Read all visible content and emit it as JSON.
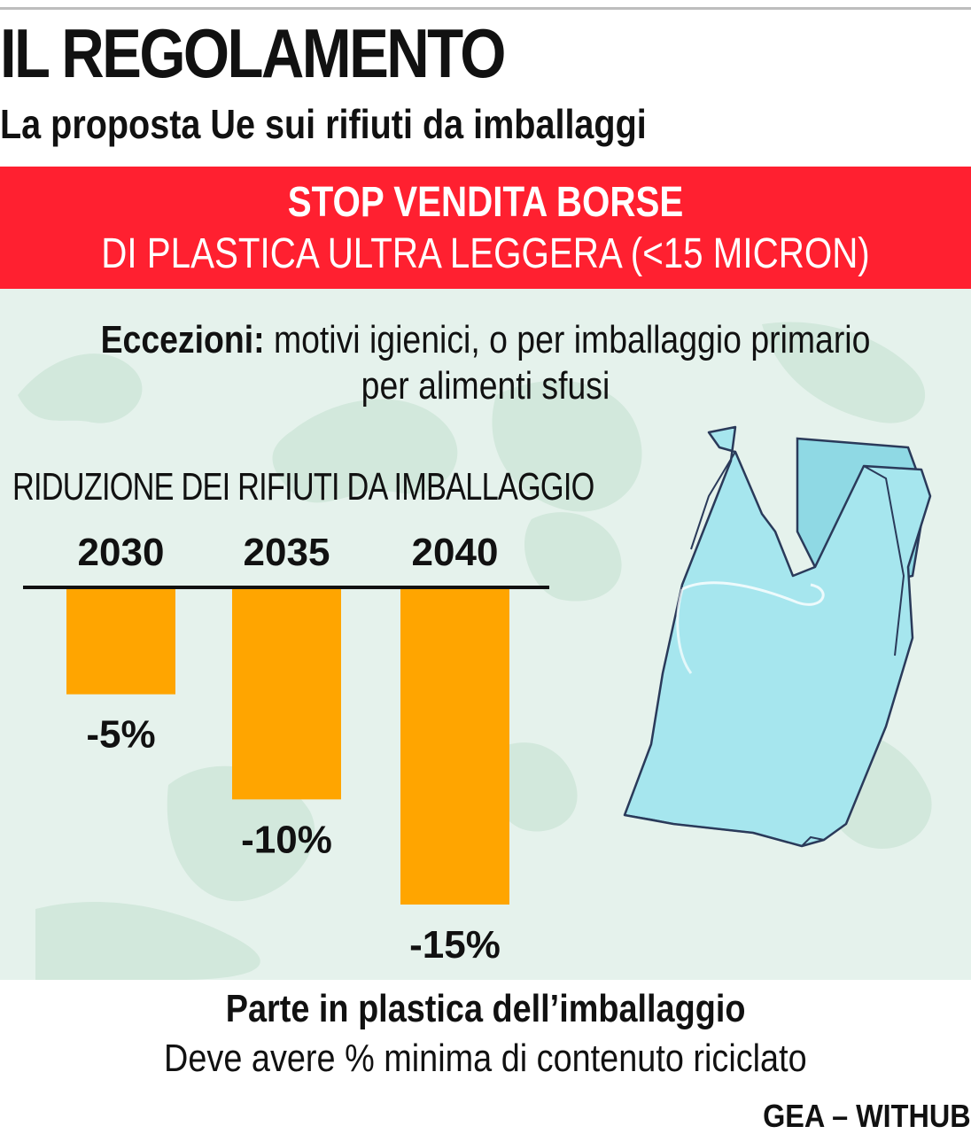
{
  "header": {
    "title": "IL REGOLAMENTO",
    "subtitle": "La proposta Ue sui rifiuti da imballaggi"
  },
  "banner": {
    "line1": "STOP VENDITA BORSE",
    "line2": "DI PLASTICA ULTRA LEGGERA (<15 MICRON)",
    "color": "#ff2030"
  },
  "exceptions": {
    "label": "Eccezioni:",
    "text1": " motivi igienici, o per imballaggio primario",
    "text2": "per alimenti sfusi"
  },
  "chart_data": {
    "type": "bar",
    "title": "RIDUZIONE DEI RIFIUTI DA IMBALLAGGIO",
    "categories": [
      "2030",
      "2035",
      "2040"
    ],
    "values": [
      -5,
      -10,
      -15
    ],
    "value_labels": [
      "-5%",
      "-10%",
      "-15%"
    ],
    "ylim": [
      -15,
      0
    ],
    "bar_color": "#ffa500",
    "orientation": "bars hang below baseline"
  },
  "footer": {
    "title": "Parte in plastica dell’imballaggio",
    "text": "Deve avere % minima di contenuto riciclato",
    "credit": "GEA – WITHUB"
  },
  "illustration": {
    "icon": "plastic-bag-icon",
    "fill": "#a6e6ee",
    "stroke": "#2a3a5a"
  }
}
